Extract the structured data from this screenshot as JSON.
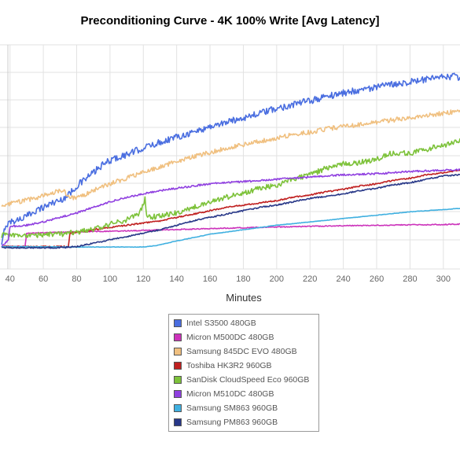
{
  "chart_data": {
    "type": "line",
    "title": "Preconditioning Curve - 4K 100% Write [Avg Latency]",
    "xlabel": "Minutes",
    "ylabel": "",
    "xlim": [
      34,
      310
    ],
    "ylim": [
      0,
      10
    ],
    "x_ticks": [
      "40",
      "60",
      "80",
      "100",
      "120",
      "140",
      "160",
      "180",
      "200",
      "220",
      "240",
      "260",
      "280",
      "300"
    ],
    "grid": true,
    "legend_position": "bottom-center",
    "series": [
      {
        "name": "Intel S3500 480GB",
        "color": "#4a6ee0",
        "points": [
          [
            35,
            1.0
          ],
          [
            37,
            1.9
          ],
          [
            40,
            2.1
          ],
          [
            45,
            2.2
          ],
          [
            50,
            2.35
          ],
          [
            55,
            2.6
          ],
          [
            60,
            2.75
          ],
          [
            65,
            2.95
          ],
          [
            70,
            3.05
          ],
          [
            75,
            3.3
          ],
          [
            80,
            3.7
          ],
          [
            85,
            4.0
          ],
          [
            90,
            4.3
          ],
          [
            95,
            4.6
          ],
          [
            100,
            4.85
          ],
          [
            110,
            5.1
          ],
          [
            120,
            5.4
          ],
          [
            130,
            5.65
          ],
          [
            140,
            5.9
          ],
          [
            150,
            6.1
          ],
          [
            160,
            6.35
          ],
          [
            170,
            6.55
          ],
          [
            180,
            6.75
          ],
          [
            190,
            6.95
          ],
          [
            200,
            7.15
          ],
          [
            210,
            7.35
          ],
          [
            220,
            7.5
          ],
          [
            230,
            7.7
          ],
          [
            240,
            7.85
          ],
          [
            250,
            8.0
          ],
          [
            260,
            8.1
          ],
          [
            270,
            8.25
          ],
          [
            280,
            8.35
          ],
          [
            290,
            8.45
          ],
          [
            300,
            8.55
          ],
          [
            306,
            8.6
          ],
          [
            310,
            8.5
          ]
        ],
        "noise": 0.15
      },
      {
        "name": "Micron M500DC 480GB",
        "color": "#cc33bb",
        "points": [
          [
            35,
            1.0
          ],
          [
            49,
            1.0
          ],
          [
            50,
            1.6
          ],
          [
            60,
            1.62
          ],
          [
            80,
            1.66
          ],
          [
            100,
            1.68
          ],
          [
            120,
            1.72
          ],
          [
            140,
            1.76
          ],
          [
            160,
            1.8
          ],
          [
            180,
            1.84
          ],
          [
            200,
            1.87
          ],
          [
            220,
            1.9
          ],
          [
            240,
            1.93
          ],
          [
            260,
            1.95
          ],
          [
            280,
            1.97
          ],
          [
            300,
            1.98
          ],
          [
            310,
            2.0
          ]
        ],
        "noise": 0.02
      },
      {
        "name": "Samsung 845DC EVO 480GB",
        "color": "#f0c080",
        "points": [
          [
            35,
            2.8
          ],
          [
            45,
            3.0
          ],
          [
            55,
            3.15
          ],
          [
            65,
            3.4
          ],
          [
            72,
            3.5
          ],
          [
            76,
            3.2
          ],
          [
            80,
            3.15
          ],
          [
            90,
            3.5
          ],
          [
            100,
            3.8
          ],
          [
            110,
            4.05
          ],
          [
            120,
            4.3
          ],
          [
            130,
            4.55
          ],
          [
            140,
            4.8
          ],
          [
            150,
            5.0
          ],
          [
            160,
            5.2
          ],
          [
            170,
            5.4
          ],
          [
            180,
            5.55
          ],
          [
            190,
            5.7
          ],
          [
            200,
            5.85
          ],
          [
            210,
            6.0
          ],
          [
            220,
            6.1
          ],
          [
            230,
            6.25
          ],
          [
            240,
            6.35
          ],
          [
            250,
            6.45
          ],
          [
            260,
            6.55
          ],
          [
            270,
            6.65
          ],
          [
            280,
            6.75
          ],
          [
            290,
            6.85
          ],
          [
            300,
            6.95
          ],
          [
            310,
            7.05
          ]
        ],
        "noise": 0.1
      },
      {
        "name": "Toshiba HK3R2 960GB",
        "color": "#c02020",
        "points": [
          [
            35,
            1.0
          ],
          [
            75,
            1.0
          ],
          [
            76,
            1.6
          ],
          [
            90,
            1.75
          ],
          [
            100,
            1.85
          ],
          [
            110,
            1.95
          ],
          [
            120,
            2.05
          ],
          [
            130,
            2.15
          ],
          [
            140,
            2.3
          ],
          [
            150,
            2.45
          ],
          [
            160,
            2.6
          ],
          [
            170,
            2.75
          ],
          [
            180,
            2.85
          ],
          [
            190,
            2.95
          ],
          [
            200,
            3.05
          ],
          [
            210,
            3.2
          ],
          [
            220,
            3.3
          ],
          [
            230,
            3.45
          ],
          [
            240,
            3.55
          ],
          [
            250,
            3.7
          ],
          [
            260,
            3.8
          ],
          [
            270,
            3.95
          ],
          [
            280,
            4.05
          ],
          [
            290,
            4.2
          ],
          [
            300,
            4.3
          ],
          [
            310,
            4.4
          ]
        ],
        "noise": 0.03
      },
      {
        "name": "SanDisk CloudSpeed Eco 960GB",
        "color": "#7dc23a",
        "points": [
          [
            35,
            1.5
          ],
          [
            50,
            1.5
          ],
          [
            70,
            1.55
          ],
          [
            90,
            1.75
          ],
          [
            100,
            2.0
          ],
          [
            110,
            2.2
          ],
          [
            118,
            2.5
          ],
          [
            121,
            3.1
          ],
          [
            122,
            2.3
          ],
          [
            130,
            2.35
          ],
          [
            140,
            2.5
          ],
          [
            150,
            2.75
          ],
          [
            160,
            3.0
          ],
          [
            170,
            3.2
          ],
          [
            180,
            3.4
          ],
          [
            190,
            3.6
          ],
          [
            200,
            3.75
          ],
          [
            210,
            4.0
          ],
          [
            220,
            4.2
          ],
          [
            230,
            4.5
          ],
          [
            240,
            4.7
          ],
          [
            250,
            4.75
          ],
          [
            260,
            4.9
          ],
          [
            270,
            5.2
          ],
          [
            280,
            5.15
          ],
          [
            290,
            5.35
          ],
          [
            300,
            5.5
          ],
          [
            310,
            5.75
          ]
        ],
        "noise": 0.12
      },
      {
        "name": "Micron M510DC 480GB",
        "color": "#9040e0",
        "points": [
          [
            35,
            1.0
          ],
          [
            39,
            1.3
          ],
          [
            40,
            1.9
          ],
          [
            50,
            1.95
          ],
          [
            60,
            2.1
          ],
          [
            70,
            2.3
          ],
          [
            80,
            2.5
          ],
          [
            90,
            2.75
          ],
          [
            100,
            3.0
          ],
          [
            110,
            3.2
          ],
          [
            120,
            3.35
          ],
          [
            130,
            3.5
          ],
          [
            140,
            3.6
          ],
          [
            150,
            3.7
          ],
          [
            160,
            3.8
          ],
          [
            180,
            3.9
          ],
          [
            200,
            4.0
          ],
          [
            220,
            4.1
          ],
          [
            240,
            4.2
          ],
          [
            260,
            4.25
          ],
          [
            280,
            4.35
          ],
          [
            300,
            4.4
          ],
          [
            310,
            4.45
          ]
        ],
        "noise": 0.04
      },
      {
        "name": "Samsung SM863 960GB",
        "color": "#40b0e0",
        "points": [
          [
            35,
            1.0
          ],
          [
            80,
            0.98
          ],
          [
            120,
            0.98
          ],
          [
            128,
            1.05
          ],
          [
            140,
            1.25
          ],
          [
            160,
            1.55
          ],
          [
            180,
            1.75
          ],
          [
            200,
            1.95
          ],
          [
            220,
            2.1
          ],
          [
            240,
            2.25
          ],
          [
            260,
            2.4
          ],
          [
            280,
            2.55
          ],
          [
            300,
            2.65
          ],
          [
            310,
            2.7
          ]
        ],
        "noise": 0.01
      },
      {
        "name": "Samsung PM863 960GB",
        "color": "#283888",
        "points": [
          [
            35,
            0.95
          ],
          [
            70,
            0.95
          ],
          [
            80,
            1.0
          ],
          [
            90,
            1.15
          ],
          [
            100,
            1.3
          ],
          [
            110,
            1.45
          ],
          [
            120,
            1.6
          ],
          [
            130,
            1.75
          ],
          [
            140,
            1.95
          ],
          [
            150,
            2.15
          ],
          [
            160,
            2.3
          ],
          [
            170,
            2.45
          ],
          [
            180,
            2.6
          ],
          [
            190,
            2.75
          ],
          [
            200,
            2.85
          ],
          [
            210,
            3.0
          ],
          [
            220,
            3.15
          ],
          [
            230,
            3.25
          ],
          [
            240,
            3.35
          ],
          [
            250,
            3.5
          ],
          [
            260,
            3.6
          ],
          [
            270,
            3.75
          ],
          [
            280,
            3.85
          ],
          [
            290,
            4.0
          ],
          [
            300,
            4.15
          ],
          [
            310,
            4.2
          ]
        ],
        "noise": 0.03
      }
    ]
  }
}
